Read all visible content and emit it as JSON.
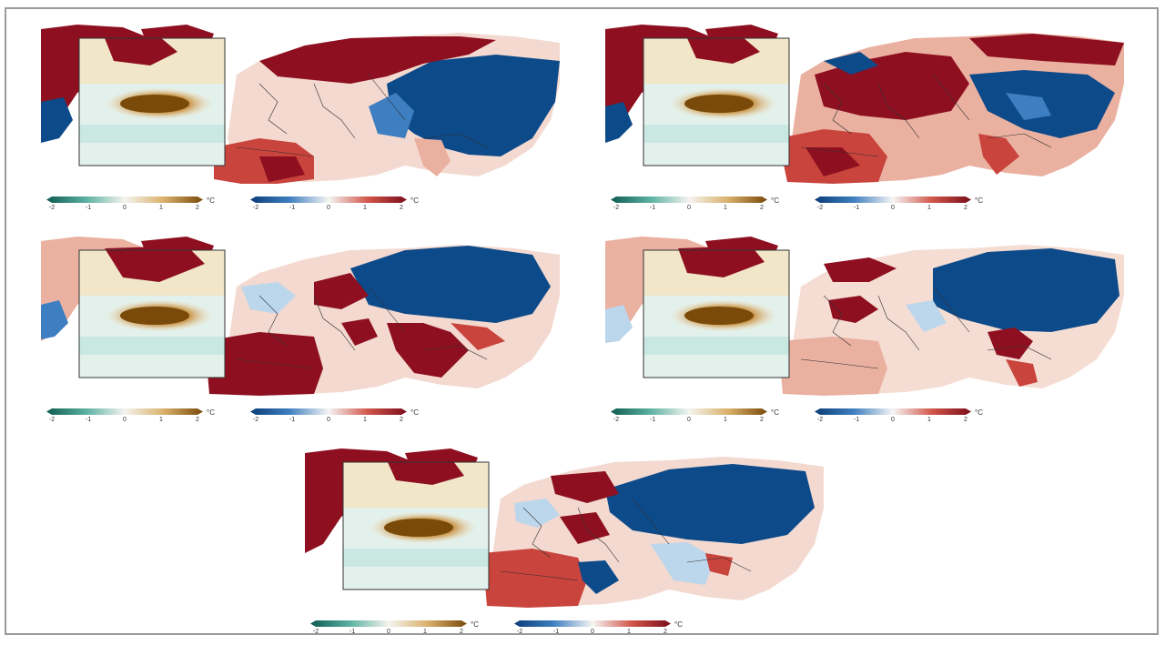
{
  "panels": [
    {
      "id": "p1"
    },
    {
      "id": "p2"
    },
    {
      "id": "p3"
    },
    {
      "id": "p4"
    },
    {
      "id": "p5"
    }
  ],
  "colorbars": {
    "ocean": {
      "ticks": [
        "-2",
        "-1",
        "0",
        "1",
        "2"
      ],
      "unit": "°C",
      "colors": [
        "#0f5c50",
        "#5ab0a0",
        "#d8efea",
        "#f5ecd8",
        "#d9b06a",
        "#7a4a0a"
      ]
    },
    "land": {
      "ticks": [
        "-2",
        "-1",
        "0",
        "1",
        "2"
      ],
      "unit": "°C",
      "colors": [
        "#0b3d78",
        "#3f7fbf",
        "#dbe8f3",
        "#f7ddd1",
        "#d2564a",
        "#7a0d1b"
      ]
    }
  },
  "palette": {
    "warm_dark": "#8e1020",
    "warm_mid": "#c9443c",
    "warm_light": "#eab0a0",
    "cool_dark": "#0d4a8a",
    "cool_mid": "#3d7fc0",
    "cool_light": "#bcd6ec",
    "sst_warm": "#8a5410",
    "sst_warm_light": "#e9d3a4",
    "sst_cool": "#bfe4dd",
    "border": "#303030"
  }
}
